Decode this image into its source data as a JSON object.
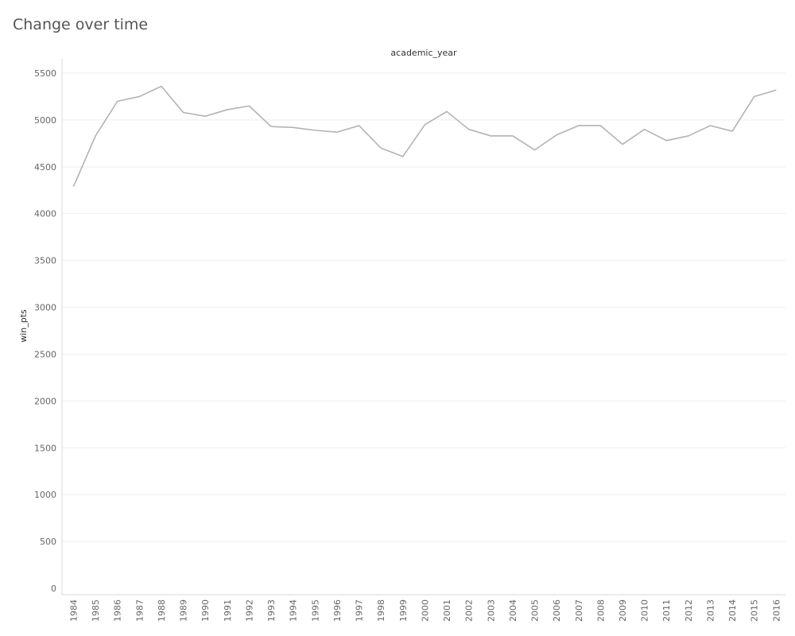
{
  "page": {
    "title": "Change over time"
  },
  "chart_data": {
    "type": "line",
    "title": "Change over time",
    "top_label": "academic_year",
    "xlabel": "",
    "ylabel": "win_pts",
    "ylim": [
      0,
      5500
    ],
    "yticks": [
      "0",
      "500",
      "1000",
      "1500",
      "2000",
      "2500",
      "3000",
      "3500",
      "4000",
      "4500",
      "5000",
      "5500"
    ],
    "grid": true,
    "line_color": "#b3b3b3",
    "grid_color": "#eeeeee",
    "categories": [
      "1984",
      "1985",
      "1986",
      "1987",
      "1988",
      "1989",
      "1990",
      "1991",
      "1992",
      "1993",
      "1994",
      "1995",
      "1996",
      "1997",
      "1998",
      "1999",
      "2000",
      "2001",
      "2002",
      "2003",
      "2004",
      "2005",
      "2006",
      "2007",
      "2008",
      "2009",
      "2010",
      "2011",
      "2012",
      "2013",
      "2014",
      "2015",
      "2016"
    ],
    "values": [
      4290,
      4830,
      5200,
      5250,
      5360,
      5080,
      5040,
      5110,
      5150,
      4930,
      4920,
      4890,
      4870,
      4940,
      4700,
      4610,
      4950,
      5090,
      4900,
      4830,
      4830,
      4680,
      4840,
      4940,
      4940,
      4740,
      4900,
      4780,
      4830,
      4940,
      4880,
      5250,
      5320
    ]
  }
}
